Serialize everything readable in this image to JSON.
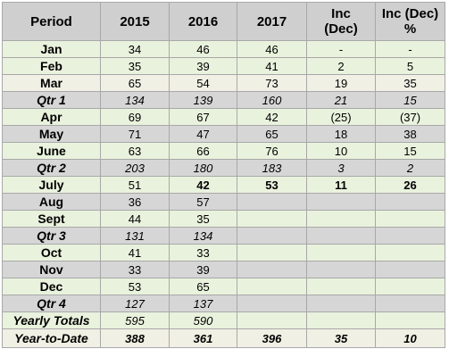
{
  "table": {
    "headers": [
      "Period",
      "2015",
      "2016",
      "2017",
      "Inc\n(Dec)",
      "Inc (Dec)\n%"
    ],
    "rows": [
      {
        "label": "Jan",
        "values": [
          "34",
          "46",
          "46",
          "-",
          "-"
        ]
      },
      {
        "label": "Feb",
        "values": [
          "35",
          "39",
          "41",
          "2",
          "5"
        ]
      },
      {
        "label": "Mar",
        "values": [
          "65",
          "54",
          "73",
          "19",
          "35"
        ]
      },
      {
        "label": "Qtr 1",
        "values": [
          "134",
          "139",
          "160",
          "21",
          "15"
        ]
      },
      {
        "label": "Apr",
        "values": [
          "69",
          "67",
          "42",
          "(25)",
          "(37)"
        ]
      },
      {
        "label": "May",
        "values": [
          "71",
          "47",
          "65",
          "18",
          "38"
        ]
      },
      {
        "label": "June",
        "values": [
          "63",
          "66",
          "76",
          "10",
          "15"
        ]
      },
      {
        "label": "Qtr 2",
        "values": [
          "203",
          "180",
          "183",
          "3",
          "2"
        ]
      },
      {
        "label": "July",
        "values": [
          "51",
          "42",
          "53",
          "11",
          "26"
        ]
      },
      {
        "label": "Aug",
        "values": [
          "36",
          "57",
          "",
          "",
          ""
        ]
      },
      {
        "label": "Sept",
        "values": [
          "44",
          "35",
          "",
          "",
          ""
        ]
      },
      {
        "label": "Qtr 3",
        "values": [
          "131",
          "134",
          "",
          "",
          ""
        ]
      },
      {
        "label": "Oct",
        "values": [
          "41",
          "33",
          "",
          "",
          ""
        ]
      },
      {
        "label": "Nov",
        "values": [
          "33",
          "39",
          "",
          "",
          ""
        ]
      },
      {
        "label": "Dec",
        "values": [
          "53",
          "65",
          "",
          "",
          ""
        ]
      },
      {
        "label": "Qtr 4",
        "values": [
          "127",
          "137",
          "",
          "",
          ""
        ]
      },
      {
        "label": "Yearly Totals",
        "values": [
          "595",
          "590",
          "",
          "",
          ""
        ]
      },
      {
        "label": "Year-to-Date",
        "values": [
          "388",
          "361",
          "396",
          "35",
          "10"
        ]
      }
    ]
  },
  "colors": {
    "header_bg": "#cfcfcf",
    "row_green": "#e9f2dd",
    "row_gray": "#d6d6d6",
    "row_cream": "#f1f0e4",
    "border": "#a8a8a8"
  }
}
